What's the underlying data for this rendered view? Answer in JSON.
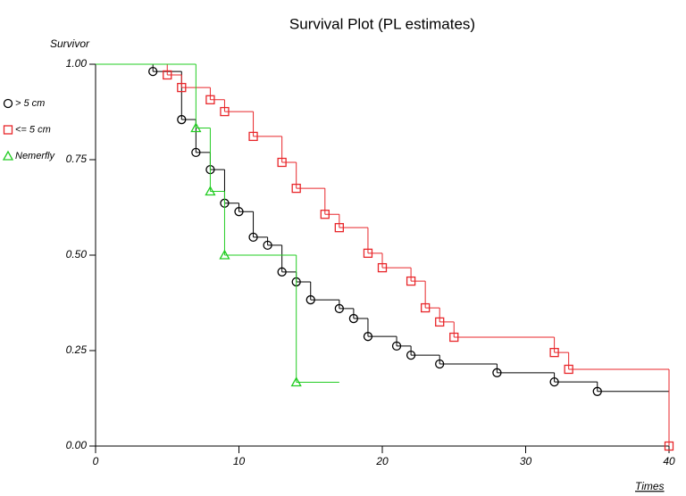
{
  "chart_data": {
    "type": "survival",
    "title": "Survival Plot (PL estimates)",
    "y_label": "Survivor",
    "x_label": "Times",
    "xlim": [
      0,
      40
    ],
    "ylim": [
      0,
      1
    ],
    "xticks": [
      0,
      10,
      20,
      30,
      40
    ],
    "yticks": [
      {
        "value": 0,
        "label": "0.00"
      },
      {
        "value": 0.25,
        "label": "0.25"
      },
      {
        "value": 0.5,
        "label": "0.50"
      },
      {
        "value": 0.75,
        "label": "0.75"
      },
      {
        "value": 1,
        "label": "1.00"
      }
    ],
    "series": [
      {
        "name": "> 5 cm",
        "color": "#000000",
        "marker": "circle",
        "last_time": 40,
        "x": [
          0,
          4,
          6,
          7,
          8,
          9,
          10,
          11,
          12,
          13,
          14,
          15,
          17,
          18,
          19,
          21,
          22,
          24,
          28,
          32,
          35
        ],
        "values": [
          1,
          0.981,
          0.855,
          0.769,
          0.724,
          0.636,
          0.614,
          0.547,
          0.526,
          0.456,
          0.43,
          0.383,
          0.36,
          0.334,
          0.287,
          0.262,
          0.238,
          0.215,
          0.192,
          0.168,
          0.143
        ]
      },
      {
        "name": "<= 5 cm",
        "color": "#e8262a",
        "marker": "square",
        "last_time": 40,
        "x": [
          0,
          5,
          6,
          8,
          9,
          11,
          13,
          14,
          16,
          17,
          19,
          20,
          22,
          23,
          24,
          25,
          32,
          33,
          40
        ],
        "values": [
          1,
          0.972,
          0.939,
          0.907,
          0.876,
          0.811,
          0.743,
          0.675,
          0.607,
          0.572,
          0.505,
          0.467,
          0.432,
          0.362,
          0.325,
          0.285,
          0.245,
          0.201,
          0
        ]
      },
      {
        "name": "Nemerfly",
        "color": "#22cc22",
        "marker": "triangle",
        "last_time": 17,
        "x": [
          0,
          7,
          8,
          9,
          14
        ],
        "values": [
          1,
          0.833,
          0.667,
          0.5,
          0.167
        ]
      }
    ]
  }
}
